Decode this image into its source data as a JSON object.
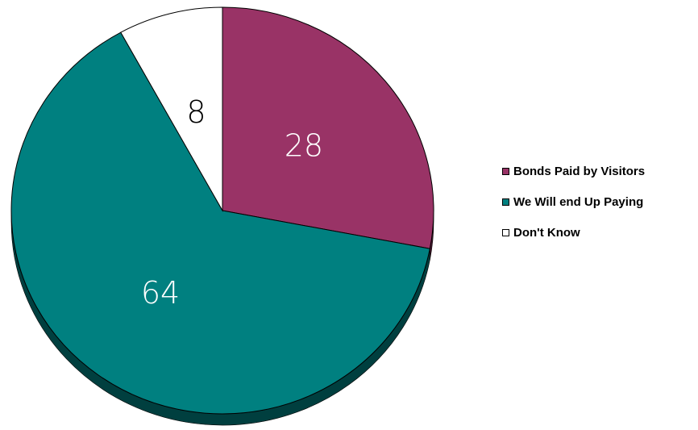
{
  "chart_data": {
    "type": "pie",
    "title": "",
    "categories": [
      "Bonds Paid by Visitors",
      "We Will end Up Paying",
      "Don't Know"
    ],
    "values": [
      28,
      64,
      8
    ],
    "colors": [
      "#993366",
      "#008080",
      "#ffffff"
    ],
    "side_colors": [
      "#4a1830",
      "#003f3f",
      "#9a9a9a"
    ],
    "label_colors": [
      "#ffffff",
      "#ffffff",
      "#000000"
    ],
    "start_angle_deg": 0,
    "direction": "clockwise",
    "style": "3d-tilted",
    "legend_position": "right"
  }
}
